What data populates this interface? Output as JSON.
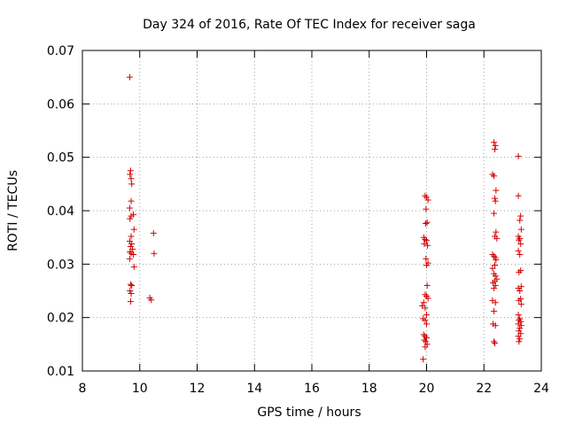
{
  "chart_data": {
    "type": "scatter",
    "title": "Day 324 of 2016, Rate Of TEC Index for receiver saga",
    "xlabel": "GPS time / hours",
    "ylabel": "ROTI / TECUs",
    "xlim": [
      8,
      24
    ],
    "ylim": [
      0.01,
      0.07
    ],
    "xticks": [
      8,
      10,
      12,
      14,
      16,
      18,
      20,
      22,
      24
    ],
    "xtick_labels": [
      "8",
      "10",
      "12",
      "14",
      "16",
      "18",
      "20",
      "22",
      "24"
    ],
    "yticks": [
      0.01,
      0.02,
      0.03,
      0.04,
      0.05,
      0.06,
      0.07
    ],
    "ytick_labels": [
      "0.01",
      "0.02",
      "0.03",
      "0.04",
      "0.05",
      "0.06",
      "0.07"
    ],
    "grid": true,
    "marker": "plus",
    "color": "#d40000",
    "series": [
      {
        "name": "ROTI",
        "points": [
          [
            9.65,
            0.065
          ],
          [
            9.68,
            0.0475
          ],
          [
            9.66,
            0.0468
          ],
          [
            9.7,
            0.046
          ],
          [
            9.72,
            0.045
          ],
          [
            9.7,
            0.0418
          ],
          [
            9.65,
            0.0405
          ],
          [
            9.78,
            0.0393
          ],
          [
            9.7,
            0.039
          ],
          [
            9.66,
            0.0385
          ],
          [
            9.8,
            0.0365
          ],
          [
            9.7,
            0.0352
          ],
          [
            9.65,
            0.0343
          ],
          [
            9.72,
            0.0338
          ],
          [
            9.68,
            0.0333
          ],
          [
            9.75,
            0.0328
          ],
          [
            9.66,
            0.0323
          ],
          [
            9.7,
            0.032
          ],
          [
            9.78,
            0.0318
          ],
          [
            9.65,
            0.031
          ],
          [
            9.8,
            0.0295
          ],
          [
            9.68,
            0.0262
          ],
          [
            9.72,
            0.026
          ],
          [
            9.66,
            0.025
          ],
          [
            9.7,
            0.0245
          ],
          [
            9.68,
            0.023
          ],
          [
            10.48,
            0.0358
          ],
          [
            10.5,
            0.032
          ],
          [
            10.35,
            0.0237
          ],
          [
            10.4,
            0.0233
          ],
          [
            19.95,
            0.0428
          ],
          [
            20.0,
            0.0425
          ],
          [
            20.05,
            0.042
          ],
          [
            19.98,
            0.0403
          ],
          [
            20.02,
            0.0378
          ],
          [
            19.97,
            0.0376
          ],
          [
            19.9,
            0.035
          ],
          [
            19.95,
            0.0346
          ],
          [
            20.0,
            0.0344
          ],
          [
            19.92,
            0.0338
          ],
          [
            20.03,
            0.0335
          ],
          [
            19.98,
            0.031
          ],
          [
            20.05,
            0.0302
          ],
          [
            20.0,
            0.0298
          ],
          [
            20.02,
            0.026
          ],
          [
            19.95,
            0.0243
          ],
          [
            20.0,
            0.024
          ],
          [
            20.05,
            0.0236
          ],
          [
            19.9,
            0.0228
          ],
          [
            19.85,
            0.0222
          ],
          [
            19.95,
            0.0218
          ],
          [
            20.0,
            0.0205
          ],
          [
            19.88,
            0.0198
          ],
          [
            19.95,
            0.0195
          ],
          [
            20.0,
            0.0188
          ],
          [
            19.9,
            0.0168
          ],
          [
            19.95,
            0.0165
          ],
          [
            20.0,
            0.0162
          ],
          [
            19.92,
            0.0158
          ],
          [
            19.97,
            0.0155
          ],
          [
            20.02,
            0.015
          ],
          [
            19.95,
            0.0145
          ],
          [
            19.88,
            0.0122
          ],
          [
            22.35,
            0.0528
          ],
          [
            22.4,
            0.0522
          ],
          [
            22.38,
            0.0515
          ],
          [
            22.3,
            0.0468
          ],
          [
            22.35,
            0.0465
          ],
          [
            22.42,
            0.0438
          ],
          [
            22.38,
            0.0423
          ],
          [
            22.4,
            0.0418
          ],
          [
            22.35,
            0.0395
          ],
          [
            22.42,
            0.036
          ],
          [
            22.38,
            0.0352
          ],
          [
            22.45,
            0.0348
          ],
          [
            22.3,
            0.0318
          ],
          [
            22.35,
            0.0315
          ],
          [
            22.4,
            0.0312
          ],
          [
            22.42,
            0.0308
          ],
          [
            22.38,
            0.0298
          ],
          [
            22.3,
            0.0292
          ],
          [
            22.35,
            0.0282
          ],
          [
            22.4,
            0.0278
          ],
          [
            22.45,
            0.0272
          ],
          [
            22.38,
            0.0268
          ],
          [
            22.32,
            0.0265
          ],
          [
            22.4,
            0.026
          ],
          [
            22.35,
            0.0255
          ],
          [
            22.3,
            0.0232
          ],
          [
            22.4,
            0.0228
          ],
          [
            22.35,
            0.0212
          ],
          [
            22.32,
            0.0188
          ],
          [
            22.4,
            0.0185
          ],
          [
            22.35,
            0.0155
          ],
          [
            22.38,
            0.0152
          ],
          [
            23.2,
            0.0502
          ],
          [
            23.2,
            0.0428
          ],
          [
            23.28,
            0.039
          ],
          [
            23.25,
            0.0382
          ],
          [
            23.3,
            0.0365
          ],
          [
            23.2,
            0.0352
          ],
          [
            23.25,
            0.0348
          ],
          [
            23.22,
            0.0345
          ],
          [
            23.28,
            0.0338
          ],
          [
            23.2,
            0.0325
          ],
          [
            23.25,
            0.0318
          ],
          [
            23.28,
            0.0288
          ],
          [
            23.22,
            0.0285
          ],
          [
            23.3,
            0.0258
          ],
          [
            23.2,
            0.0255
          ],
          [
            23.25,
            0.025
          ],
          [
            23.28,
            0.0235
          ],
          [
            23.22,
            0.0232
          ],
          [
            23.3,
            0.0225
          ],
          [
            23.2,
            0.0205
          ],
          [
            23.25,
            0.0198
          ],
          [
            23.22,
            0.0195
          ],
          [
            23.28,
            0.0192
          ],
          [
            23.2,
            0.0188
          ],
          [
            23.3,
            0.0185
          ],
          [
            23.25,
            0.018
          ],
          [
            23.22,
            0.0175
          ],
          [
            23.28,
            0.017
          ],
          [
            23.2,
            0.0165
          ],
          [
            23.25,
            0.016
          ],
          [
            23.22,
            0.0155
          ]
        ]
      }
    ]
  }
}
